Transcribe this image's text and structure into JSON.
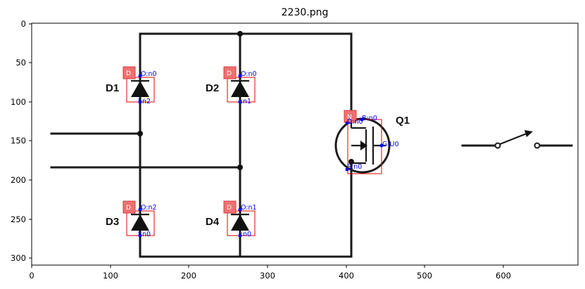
{
  "title": "2230.png",
  "axes": {
    "x_ticks": [
      "0",
      "100",
      "200",
      "300",
      "400",
      "500",
      "600"
    ],
    "y_ticks": [
      "0",
      "50",
      "100",
      "150",
      "200",
      "250",
      "300"
    ]
  },
  "components": [
    {
      "id": "D1",
      "tag": "D",
      "pins": [
        "O:n0",
        "I:n2"
      ]
    },
    {
      "id": "D2",
      "tag": "D",
      "pins": [
        "O:n0",
        "I:n1"
      ]
    },
    {
      "id": "D3",
      "tag": "D",
      "pins": [
        "O:n2",
        "I:n0"
      ]
    },
    {
      "id": "D4",
      "tag": "D",
      "pins": [
        "O:n1",
        "I:n0"
      ]
    },
    {
      "id": "Q1",
      "tag": "N",
      "pins": [
        "B:n0",
        "D:n0",
        "G:U0",
        "S:n0"
      ]
    }
  ],
  "colors": {
    "bbox": "#e00000",
    "tag_fill": "#f07070",
    "pin_label": "#0000ee",
    "wire": "#1a1a1a"
  }
}
